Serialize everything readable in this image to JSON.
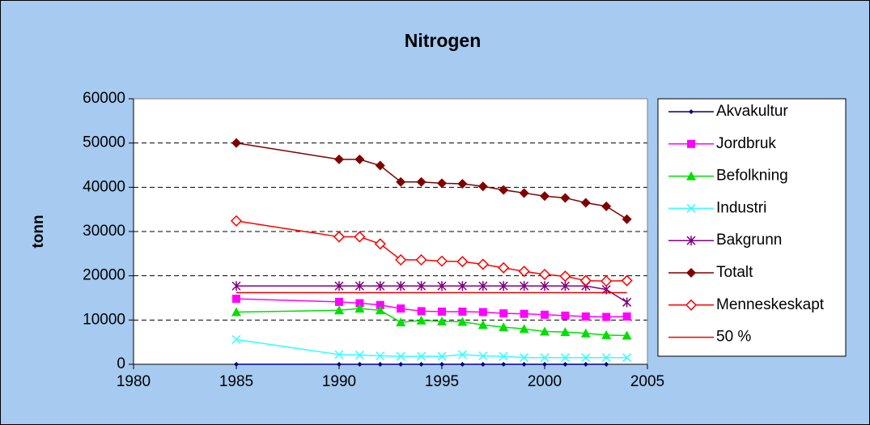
{
  "chart_data": {
    "type": "line",
    "title": "Nitrogen",
    "y_label": "tonn",
    "x": [
      1985,
      1990,
      1991,
      1992,
      1993,
      1994,
      1995,
      1996,
      1997,
      1998,
      1999,
      2000,
      2001,
      2002,
      2003,
      2004
    ],
    "xlim": [
      1980,
      2005
    ],
    "xticks": [
      1980,
      1985,
      1990,
      1995,
      2000,
      2005
    ],
    "ylim": [
      0,
      60000
    ],
    "yticks": [
      0,
      10000,
      20000,
      30000,
      40000,
      50000,
      60000
    ],
    "grid": true,
    "legend": "right",
    "series": [
      {
        "name": "Akvakultur",
        "color": "#000080",
        "marker": "diamond",
        "values": [
          0,
          0,
          0,
          0,
          0,
          0,
          0,
          0,
          0,
          0,
          0,
          0,
          0,
          0,
          0,
          null
        ]
      },
      {
        "name": "Jordbruk",
        "color": "#ff00ff",
        "marker": "square",
        "values": [
          14800,
          14100,
          13800,
          13400,
          12600,
          12000,
          11900,
          11900,
          11800,
          11500,
          11400,
          11200,
          11000,
          10800,
          10700,
          10800
        ]
      },
      {
        "name": "Befolkning",
        "color": "#00e000",
        "marker": "triangle",
        "values": [
          11800,
          12200,
          12600,
          12200,
          9500,
          9900,
          9700,
          9600,
          8900,
          8400,
          8000,
          7400,
          7300,
          7000,
          6600,
          6500
        ]
      },
      {
        "name": "Industri",
        "color": "#33ffff",
        "marker": "x",
        "values": [
          5600,
          2200,
          2100,
          1900,
          1800,
          1800,
          1800,
          2200,
          1900,
          1800,
          1500,
          1500,
          1500,
          1500,
          1500,
          1500
        ]
      },
      {
        "name": "Bakgrunn",
        "color": "#800080",
        "marker": "star",
        "values": [
          17700,
          17700,
          17700,
          17700,
          17700,
          17700,
          17700,
          17700,
          17700,
          17700,
          17700,
          17700,
          17700,
          17700,
          16900,
          14000
        ]
      },
      {
        "name": "Totalt",
        "color": "#800000",
        "marker": "diamond-filled",
        "values": [
          50000,
          46300,
          46300,
          44900,
          41200,
          41200,
          40900,
          40800,
          40200,
          39400,
          38700,
          38000,
          37600,
          36500,
          35700,
          32800
        ]
      },
      {
        "name": "Menneskeskapt",
        "color": "#ff0000",
        "marker": "diamond-open",
        "values": [
          32400,
          28800,
          28800,
          27200,
          23600,
          23600,
          23300,
          23200,
          22600,
          21800,
          21000,
          20300,
          19900,
          18900,
          18800,
          18900
        ]
      },
      {
        "name": "50 %",
        "color": "#ee0000",
        "marker": "none",
        "values": [
          16200,
          16200,
          16200,
          16200,
          16200,
          16200,
          16200,
          16200,
          16200,
          16200,
          16200,
          16200,
          16200,
          16200,
          16200,
          16200
        ]
      }
    ]
  }
}
